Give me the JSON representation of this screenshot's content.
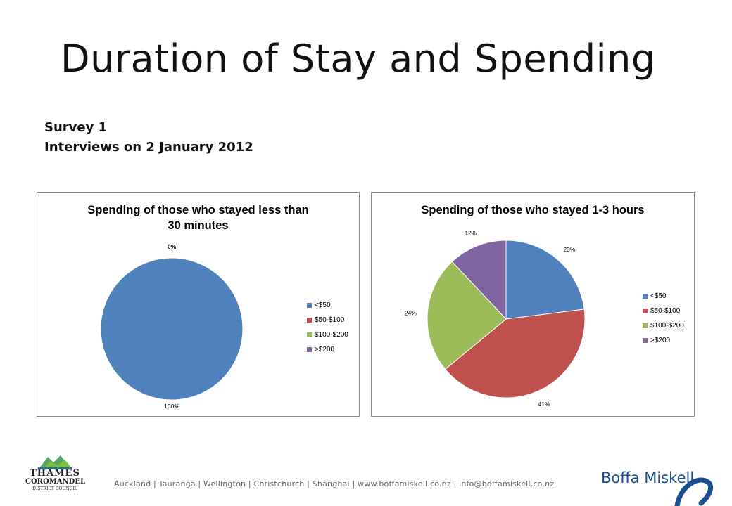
{
  "slide": {
    "title": "Duration of Stay and Spending",
    "subtitle_line1": "Survey 1",
    "subtitle_line2": "Interviews on 2 January 2012"
  },
  "chart_data": [
    {
      "type": "pie",
      "title_line1": "Spending of those who stayed less than",
      "title_line2": "30 minutes",
      "categories": [
        "<$50",
        "$50-$100",
        "$100-$200",
        ">$200"
      ],
      "values": [
        100,
        0,
        0,
        0
      ],
      "labels": [
        "100%",
        "0%",
        "",
        ""
      ],
      "legend_position": "right",
      "colors": [
        "#4f81bd",
        "#c0504d",
        "#9bbb59",
        "#8064a2"
      ]
    },
    {
      "type": "pie",
      "title_line1": "Spending of those who stayed 1-3 hours",
      "title_line2": "",
      "categories": [
        "<$50",
        "$50-$100",
        "$100-$200",
        ">$200"
      ],
      "values": [
        23,
        41,
        24,
        12
      ],
      "labels": [
        "23%",
        "41%",
        "24%",
        "12%"
      ],
      "legend_position": "right",
      "colors": [
        "#4f81bd",
        "#c0504d",
        "#9bbb59",
        "#8064a2"
      ]
    }
  ],
  "footer": {
    "contact": "Auckland  |  Tauranga  |  Wellington  |  Christchurch  |  Shanghai  |  www.boffamiskell.co.nz  |  info@boffamiskell.co.nz",
    "council_logo_line1": "THAMES",
    "council_logo_line2": "COROMANDEL",
    "council_logo_line3": "DISTRICT COUNCIL",
    "brand_logo": "Boffa Miskell",
    "brand_color": "#1b4f92",
    "council_logo_colors": [
      "#2e6da4",
      "#5aa469",
      "#7cc242"
    ]
  }
}
